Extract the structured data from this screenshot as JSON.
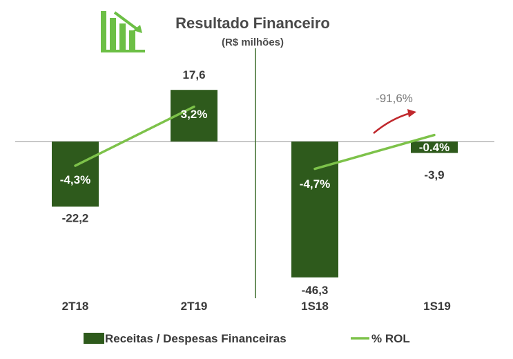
{
  "colors": {
    "bar": "#2e5a1c",
    "line": "#7dc24a",
    "icon": "#6cbf45",
    "axis": "#b5b5b5",
    "divider": "#3a6b2a",
    "arrow": "#c0282d"
  },
  "chart_data": {
    "type": "bar",
    "title": "Resultado Financeiro",
    "subtitle": "(R$ milhões)",
    "categories": [
      "2T18",
      "2T19",
      "1S18",
      "1S19"
    ],
    "value_labels": [
      "-22,2",
      "17,6",
      "-46,3",
      "-3,9"
    ],
    "pct_labels": [
      "-4,3%",
      "3,2%",
      "-4,7%",
      "-0.4%"
    ],
    "series": [
      {
        "name": "Receitas / Despesas Financeiras",
        "values": [
          -22.2,
          17.6,
          -46.3,
          -3.9
        ]
      },
      {
        "name": "% ROL",
        "values": [
          -4.3,
          3.2,
          -4.7,
          -0.4
        ]
      }
    ],
    "annotation": {
      "text": "-91,6%",
      "arrow": "up-right-red"
    },
    "legend_position": "bottom",
    "grid": false
  }
}
